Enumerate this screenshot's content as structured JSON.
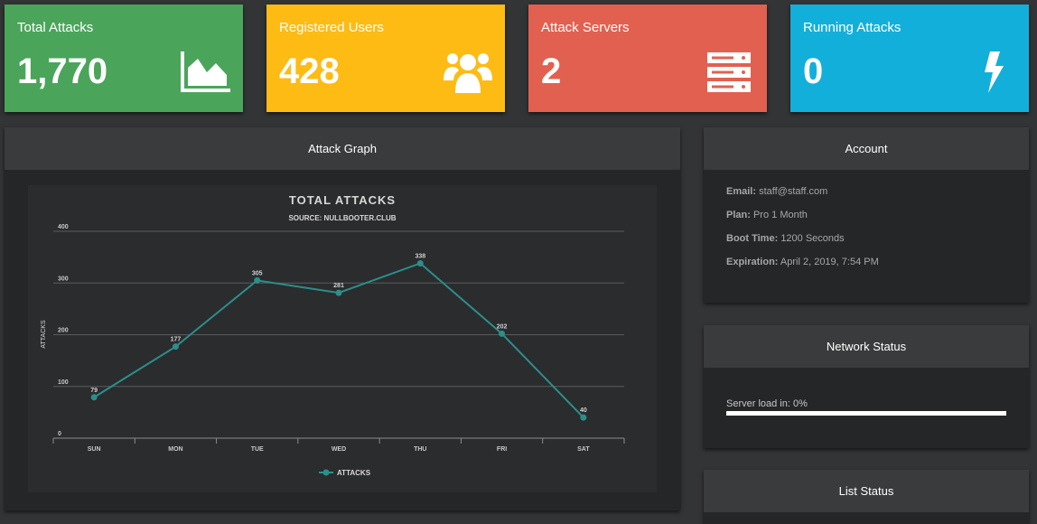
{
  "stats": [
    {
      "label": "Total Attacks",
      "value": "1,770",
      "color": "#4aa55a",
      "icon": "area-chart-icon"
    },
    {
      "label": "Registered Users",
      "value": "428",
      "color": "#fdbb14",
      "icon": "users-icon"
    },
    {
      "label": "Attack Servers",
      "value": "2",
      "color": "#e2604f",
      "icon": "server-icon"
    },
    {
      "label": "Running Attacks",
      "value": "0",
      "color": "#13afdb",
      "icon": "bolt-icon"
    }
  ],
  "attack_graph": {
    "title": "Attack Graph"
  },
  "account": {
    "title": "Account",
    "email_key": "Email:",
    "email": "staff@staff.com",
    "plan_key": "Plan:",
    "plan": "Pro 1 Month",
    "boot_key": "Boot Time:",
    "boot": "1200 Seconds",
    "exp_key": "Expiration:",
    "exp": "April 2, 2019, 7:54 PM"
  },
  "network": {
    "title": "Network Status",
    "load_text": "Server load in: 0%",
    "load_value": 0
  },
  "list_status": {
    "title": "List Status"
  },
  "chart_data": {
    "type": "line",
    "title": "TOTAL ATTACKS",
    "subtitle": "SOURCE: NULLBOOTER.CLUB",
    "xlabel": "",
    "ylabel": "ATTACKS",
    "categories": [
      "SUN",
      "MON",
      "TUE",
      "WED",
      "THU",
      "FRI",
      "SAT"
    ],
    "series": [
      {
        "name": "ATTACKS",
        "values": [
          79,
          177,
          305,
          281,
          338,
          202,
          40
        ],
        "color": "#2b8f8a"
      }
    ],
    "ylim": [
      0,
      400
    ],
    "yticks": [
      0,
      100,
      200,
      300,
      400
    ],
    "grid": true,
    "legend": "bottom"
  }
}
